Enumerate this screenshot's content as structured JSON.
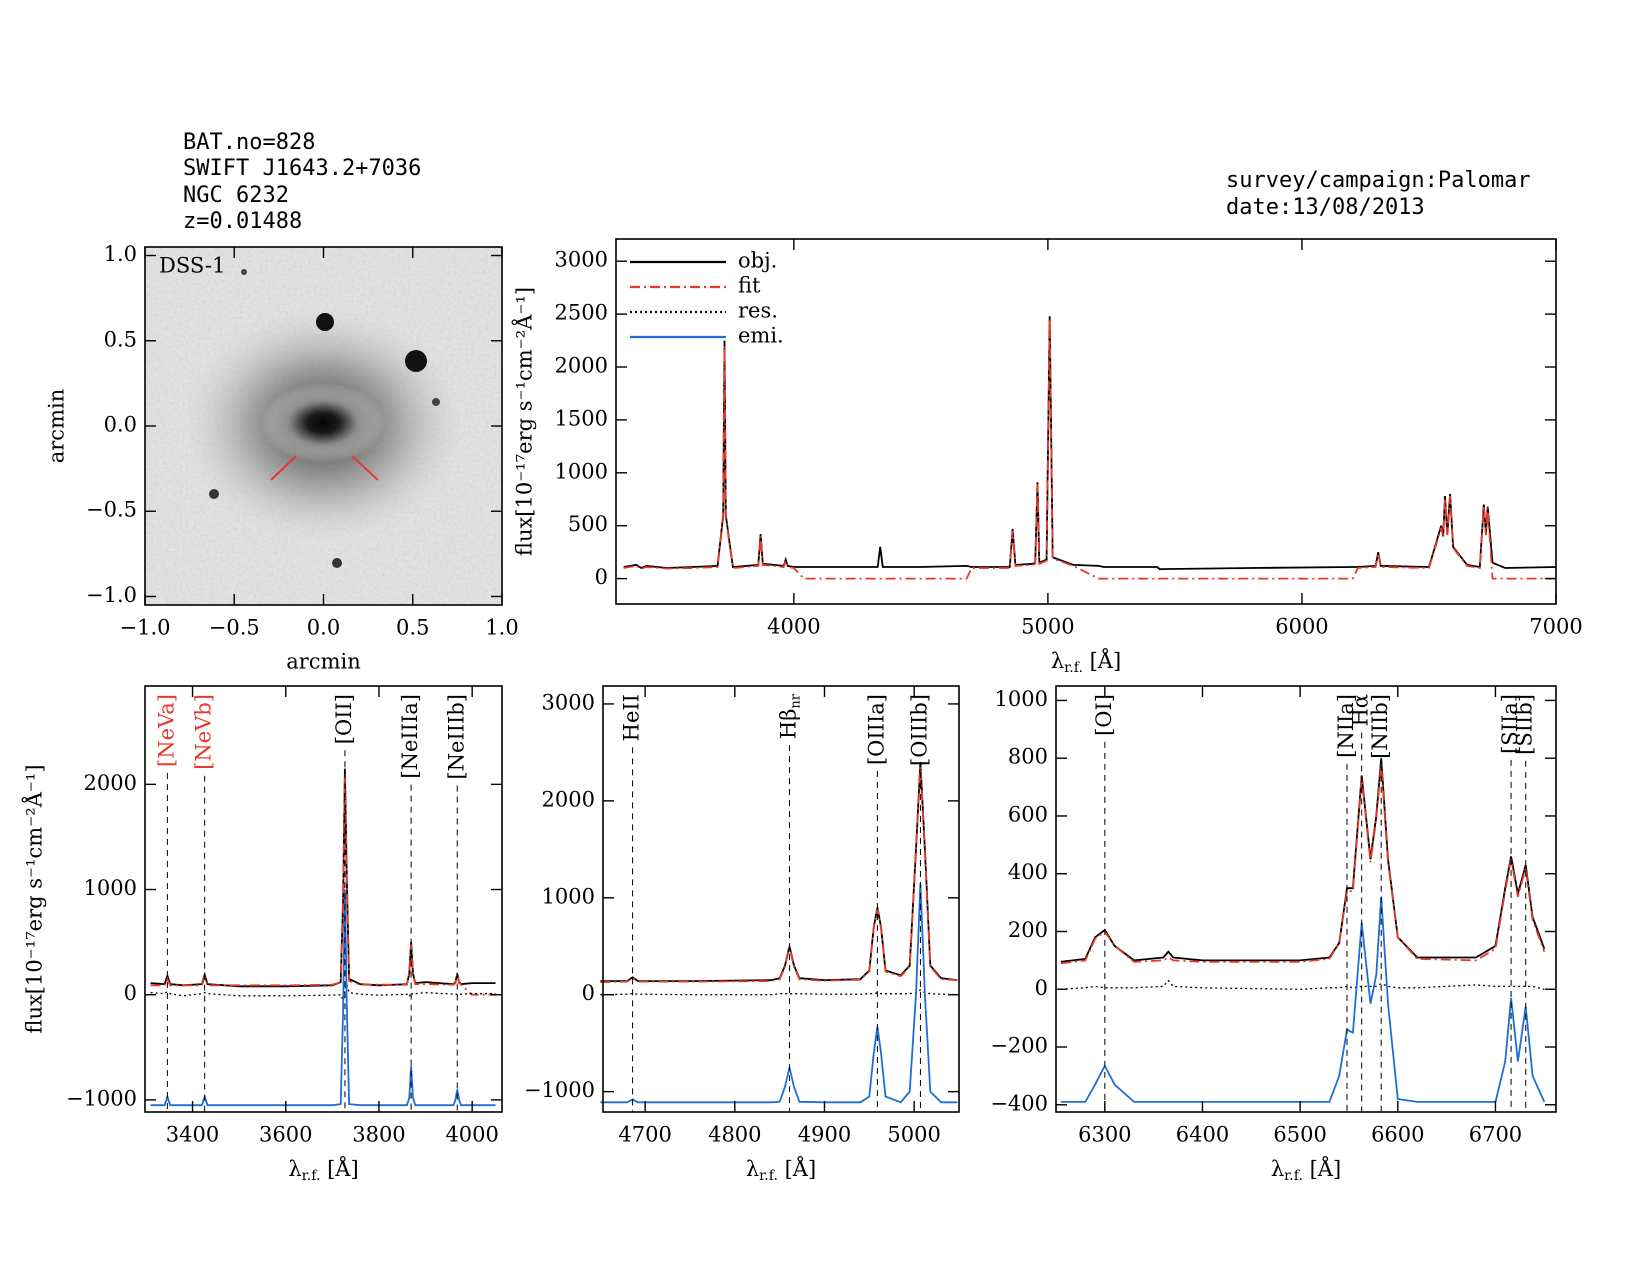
{
  "header": {
    "left": [
      "BAT.no=828",
      "SWIFT J1643.2+7036",
      "NGC 6232",
      "z=0.01488"
    ],
    "right": [
      "survey/campaign:Palomar",
      "date:13/08/2013"
    ]
  },
  "chart_data": [
    {
      "type": "image",
      "label": "DSS-1",
      "xlabel": "arcmin",
      "ylabel": "arcmin",
      "xlim": [
        -1,
        1
      ],
      "ylim": [
        -1.05,
        1.05
      ],
      "xticks": [
        {
          "value": -1,
          "label": "−1.0"
        },
        {
          "value": -0.5,
          "label": "−0.5"
        },
        {
          "value": 0,
          "label": "0.0"
        },
        0.5,
        {
          "value": 1,
          "label": "1.0"
        }
      ],
      "yticks": [
        {
          "value": -1,
          "label": "−1.0"
        },
        {
          "value": -0.5,
          "label": "−0.5"
        },
        {
          "value": 0,
          "label": "0.0"
        },
        0.5,
        {
          "value": 1,
          "label": "1.0"
        }
      ]
    },
    {
      "type": "line",
      "ylabel": "flux[10⁻¹⁷erg s⁻¹cm⁻²Å⁻¹]",
      "xlabel": {
        "main": "λ",
        "sub": "r.f.",
        "tail": " [Å]"
      },
      "xlim": [
        3300,
        7000
      ],
      "ylim": [
        -240,
        3210
      ],
      "xticks": [
        4000,
        5000,
        6000,
        7000
      ],
      "yticks": [
        0,
        500,
        1000,
        1500,
        2000,
        2500,
        3000
      ],
      "x": [
        3330,
        3380,
        3400,
        3420,
        3500,
        3600,
        3700,
        3722,
        3727,
        3732,
        3760,
        3860,
        3869,
        3878,
        3960,
        3968,
        3976,
        4000,
        4040,
        4200,
        4330,
        4340,
        4350,
        4500,
        4680,
        4700,
        4850,
        4861,
        4872,
        4940,
        4950,
        4959,
        4966,
        4995,
        5007,
        5019,
        5100,
        5200,
        5220,
        5430,
        5440,
        5800,
        6200,
        6220,
        6290,
        6300,
        6310,
        6500,
        6548,
        6556,
        6563,
        6572,
        6583,
        6595,
        6650,
        6700,
        6716,
        6724,
        6731,
        6750,
        6800,
        7000
      ],
      "series": [
        {
          "name": "obj.",
          "color": "#000000",
          "style": "solid",
          "values": [
            110,
            130,
            100,
            120,
            100,
            110,
            120,
            600,
            2250,
            600,
            110,
            130,
            420,
            140,
            120,
            180,
            120,
            110,
            110,
            110,
            110,
            300,
            110,
            110,
            120,
            110,
            110,
            470,
            130,
            140,
            150,
            910,
            150,
            180,
            2480,
            200,
            130,
            120,
            110,
            110,
            90,
            100,
            110,
            110,
            120,
            250,
            120,
            110,
            500,
            400,
            780,
            420,
            800,
            300,
            130,
            110,
            700,
            420,
            680,
            150,
            100,
            110
          ]
        },
        {
          "name": "fit",
          "color": "#e8382b",
          "style": "dashdot",
          "values": [
            100,
            120,
            95,
            110,
            95,
            100,
            110,
            580,
            2200,
            580,
            100,
            120,
            400,
            130,
            110,
            170,
            110,
            100,
            0,
            0,
            0,
            0,
            0,
            0,
            0,
            100,
            100,
            450,
            120,
            130,
            140,
            890,
            140,
            170,
            2450,
            190,
            120,
            0,
            0,
            0,
            0,
            0,
            0,
            100,
            110,
            240,
            110,
            100,
            480,
            390,
            760,
            410,
            780,
            290,
            120,
            100,
            690,
            410,
            670,
            0,
            0,
            0
          ]
        },
        {
          "name": "res.",
          "color": "#000000",
          "style": "dotted"
        },
        {
          "name": "emi.",
          "color": "#1f6ed4",
          "style": "solid"
        }
      ]
    },
    {
      "type": "line",
      "ylabel": "flux[10⁻¹⁷erg s⁻¹cm⁻²Å⁻¹]",
      "xlabel": {
        "main": "λ",
        "sub": "r.f.",
        "tail": " [Å]"
      },
      "xlim": [
        3298,
        4064
      ],
      "ylim": [
        -1115,
        2935
      ],
      "xticks": [
        3400,
        3600,
        3800,
        4000
      ],
      "yticks": [
        {
          "value": -1000,
          "label": "−1000"
        },
        0,
        1000,
        2000
      ],
      "x": [
        3310,
        3340,
        3346,
        3352,
        3380,
        3420,
        3426,
        3432,
        3500,
        3600,
        3700,
        3718,
        3723,
        3727,
        3731,
        3736,
        3760,
        3800,
        3860,
        3865,
        3869,
        3873,
        3878,
        3900,
        3960,
        3964,
        3968,
        3972,
        3976,
        4000,
        4050
      ],
      "series": [
        {
          "color": "#000000",
          "style": "solid",
          "values": [
            110,
            100,
            180,
            100,
            90,
            100,
            190,
            100,
            80,
            80,
            90,
            120,
            900,
            2150,
            1100,
            150,
            100,
            90,
            100,
            200,
            500,
            200,
            110,
            120,
            100,
            120,
            200,
            120,
            100,
            110,
            110
          ]
        },
        {
          "color": "#e8382b",
          "style": "dashdot",
          "values": [
            90,
            90,
            150,
            90,
            90,
            90,
            170,
            90,
            90,
            90,
            95,
            120,
            950,
            2100,
            1000,
            130,
            95,
            95,
            95,
            220,
            480,
            200,
            100,
            100,
            95,
            110,
            200,
            110,
            95,
            0,
            0
          ]
        },
        {
          "color": "#000000",
          "style": "dotted",
          "values": [
            20,
            10,
            30,
            10,
            -10,
            10,
            20,
            10,
            -10,
            -10,
            -5,
            0,
            -50,
            50,
            100,
            20,
            5,
            -5,
            5,
            -20,
            20,
            0,
            10,
            20,
            5,
            10,
            0,
            10,
            5,
            10,
            10
          ]
        },
        {
          "color": "#1f6ed4",
          "style": "solid",
          "values": [
            -1050,
            -1050,
            -970,
            -1050,
            -1050,
            -1050,
            -970,
            -1050,
            -1050,
            -1050,
            -1050,
            -1040,
            -150,
            1000,
            -100,
            -1040,
            -1050,
            -1050,
            -1050,
            -980,
            -680,
            -980,
            -1050,
            -1050,
            -1050,
            -1000,
            -900,
            -1000,
            -1050,
            -1050,
            -1050
          ]
        }
      ],
      "lines": [
        {
          "label": "[NeVa]",
          "x": 3346,
          "color": "#e8382b"
        },
        {
          "label": "[NeVb]",
          "x": 3426,
          "color": "#e8382b"
        },
        {
          "label": "[OII]",
          "x": 3727,
          "color": "#000000"
        },
        {
          "label": "[NeIIIa]",
          "x": 3869,
          "color": "#000000"
        },
        {
          "label": "[NeIIIb]",
          "x": 3968,
          "color": "#000000"
        }
      ]
    },
    {
      "type": "line",
      "xlabel": {
        "main": "λ",
        "sub": "r.f.",
        "tail": " [Å]"
      },
      "xlim": [
        4653,
        5050
      ],
      "ylim": [
        -1210,
        3185
      ],
      "xticks": [
        4700,
        4800,
        4900,
        5000
      ],
      "yticks": [
        {
          "value": -1000,
          "label": "−1000"
        },
        0,
        1000,
        2000,
        3000
      ],
      "x": [
        4650,
        4680,
        4686,
        4692,
        4750,
        4840,
        4850,
        4856,
        4861,
        4866,
        4872,
        4900,
        4940,
        4950,
        4955,
        4959,
        4963,
        4968,
        4985,
        4995,
        5002,
        5007,
        5012,
        5018,
        5030,
        5048
      ],
      "series": [
        {
          "color": "#000000",
          "style": "solid",
          "values": [
            140,
            140,
            180,
            140,
            140,
            150,
            170,
            300,
            500,
            300,
            170,
            150,
            160,
            250,
            700,
            900,
            700,
            250,
            200,
            300,
            1500,
            2400,
            1500,
            300,
            170,
            150
          ]
        },
        {
          "color": "#e8382b",
          "style": "dashdot",
          "values": [
            130,
            135,
            170,
            135,
            135,
            140,
            160,
            290,
            490,
            290,
            160,
            145,
            155,
            240,
            690,
            880,
            690,
            240,
            190,
            290,
            1480,
            2350,
            1480,
            290,
            160,
            150
          ]
        },
        {
          "color": "#000000",
          "style": "dotted",
          "values": [
            0,
            5,
            10,
            5,
            0,
            0,
            10,
            10,
            10,
            10,
            10,
            5,
            5,
            10,
            10,
            20,
            10,
            10,
            10,
            10,
            20,
            50,
            20,
            10,
            5,
            0
          ]
        },
        {
          "color": "#1f6ed4",
          "style": "solid",
          "values": [
            -1110,
            -1110,
            -1080,
            -1110,
            -1110,
            -1110,
            -1105,
            -950,
            -750,
            -950,
            -1105,
            -1110,
            -1110,
            -1050,
            -600,
            -330,
            -600,
            -1050,
            -1110,
            -1000,
            0,
            1150,
            0,
            -1000,
            -1110,
            -1110
          ]
        }
      ],
      "lines": [
        {
          "label": "HeII",
          "x": 4686,
          "color": "#000000"
        },
        {
          "label": "Hβ",
          "sub": "nr",
          "x": 4861,
          "color": "#000000"
        },
        {
          "label": "[OIIIa]",
          "x": 4959,
          "color": "#000000"
        },
        {
          "label": "[OIIIb]",
          "x": 5007,
          "color": "#000000"
        }
      ]
    },
    {
      "type": "line",
      "xlabel": {
        "main": "λ",
        "sub": "r.f.",
        "tail": " [Å]"
      },
      "xlim": [
        6250,
        6762
      ],
      "ylim": [
        -425,
        1050
      ],
      "xticks": [
        6300,
        6400,
        6500,
        6600,
        6700
      ],
      "yticks": [
        {
          "value": -400,
          "label": "−400"
        },
        {
          "value": -200,
          "label": "−200"
        },
        0,
        200,
        400,
        600,
        800,
        1000
      ],
      "x": [
        6255,
        6280,
        6290,
        6300,
        6310,
        6330,
        6360,
        6365,
        6370,
        6400,
        6500,
        6530,
        6540,
        6548,
        6554,
        6563,
        6572,
        6578,
        6583,
        6590,
        6600,
        6620,
        6680,
        6700,
        6710,
        6716,
        6723,
        6731,
        6738,
        6750
      ],
      "series": [
        {
          "color": "#000000",
          "style": "solid",
          "values": [
            95,
            105,
            180,
            205,
            150,
            100,
            110,
            130,
            110,
            100,
            100,
            110,
            160,
            350,
            350,
            740,
            450,
            600,
            800,
            450,
            180,
            110,
            110,
            150,
            350,
            460,
            330,
            430,
            250,
            140
          ]
        },
        {
          "color": "#e8382b",
          "style": "dashdot",
          "values": [
            90,
            100,
            175,
            200,
            150,
            95,
            100,
            110,
            100,
            95,
            95,
            105,
            160,
            340,
            340,
            730,
            440,
            590,
            780,
            440,
            180,
            105,
            100,
            140,
            340,
            450,
            320,
            420,
            240,
            130
          ]
        },
        {
          "color": "#000000",
          "style": "dotted",
          "values": [
            0,
            5,
            10,
            5,
            5,
            5,
            10,
            30,
            10,
            5,
            0,
            5,
            5,
            10,
            5,
            10,
            10,
            10,
            20,
            10,
            5,
            5,
            15,
            10,
            10,
            10,
            10,
            10,
            10,
            0
          ]
        },
        {
          "color": "#1f6ed4",
          "style": "solid",
          "values": [
            -390,
            -390,
            -330,
            -265,
            -330,
            -390,
            -390,
            -390,
            -390,
            -390,
            -390,
            -390,
            -300,
            -140,
            -150,
            230,
            -50,
            50,
            320,
            -50,
            -380,
            -390,
            -390,
            -390,
            -250,
            -30,
            -250,
            -60,
            -300,
            -390
          ]
        }
      ],
      "lines": [
        {
          "label": "[OI]",
          "x": 6300,
          "color": "#000000"
        },
        {
          "label": "[NIIa]",
          "x": 6548,
          "color": "#000000"
        },
        {
          "label": "Hα",
          "x": 6563,
          "color": "#000000"
        },
        {
          "label": "[NIIb]",
          "x": 6583,
          "color": "#000000"
        },
        {
          "label": "[SIIa]",
          "x": 6716,
          "color": "#000000"
        },
        {
          "label": "[SIIb]",
          "x": 6731,
          "color": "#000000"
        }
      ]
    }
  ]
}
